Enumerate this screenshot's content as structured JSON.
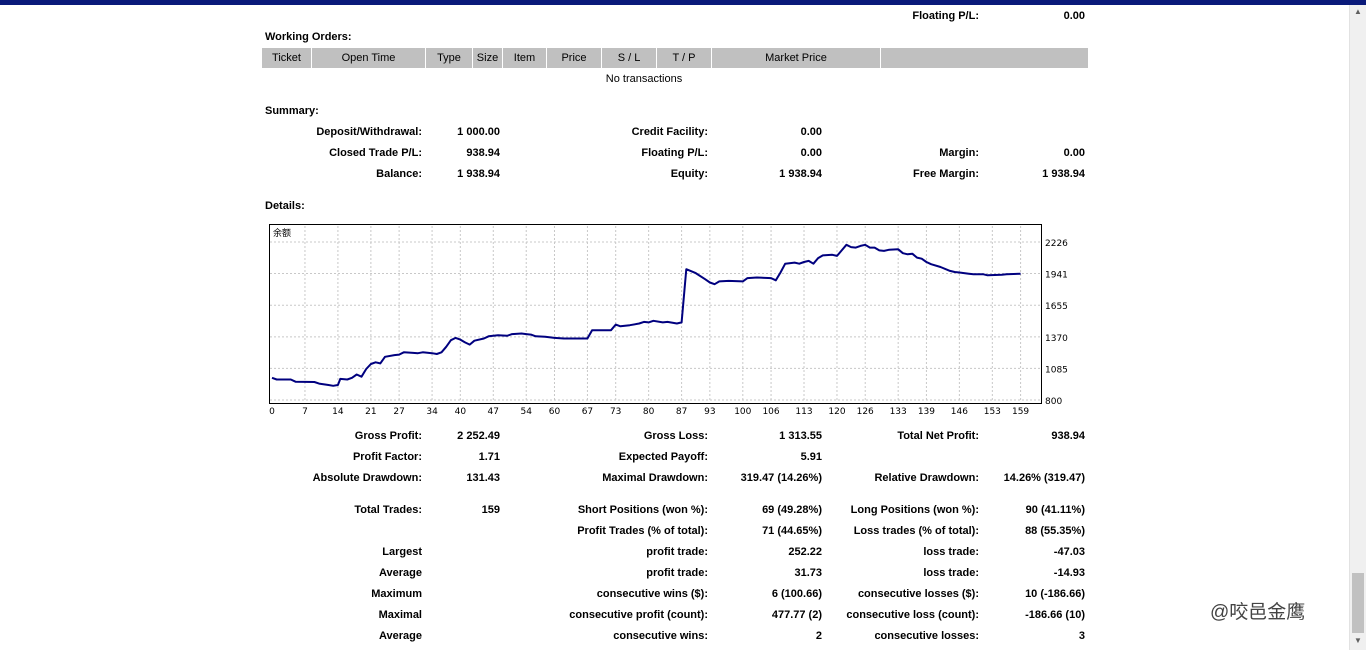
{
  "top": {
    "floating_label": "Floating P/L:",
    "floating_value": "0.00"
  },
  "working_orders": {
    "title": "Working Orders:",
    "columns": [
      "Ticket",
      "Open Time",
      "Type",
      "Size",
      "Item",
      "Price",
      "S / L",
      "T / P",
      "Market Price",
      ""
    ],
    "empty_text": "No transactions"
  },
  "summary": {
    "title": "Summary:",
    "deposit_label": "Deposit/Withdrawal:",
    "deposit_value": "1 000.00",
    "credit_label": "Credit Facility:",
    "credit_value": "0.00",
    "closed_label": "Closed Trade P/L:",
    "closed_value": "938.94",
    "floating_label": "Floating P/L:",
    "floating_value": "0.00",
    "margin_label": "Margin:",
    "margin_value": "0.00",
    "balance_label": "Balance:",
    "balance_value": "1 938.94",
    "equity_label": "Equity:",
    "equity_value": "1 938.94",
    "free_margin_label": "Free Margin:",
    "free_margin_value": "1 938.94"
  },
  "details": {
    "title": "Details:"
  },
  "chart_data": {
    "type": "line",
    "title": "余额",
    "x_ticks": [
      0,
      7,
      14,
      21,
      27,
      34,
      40,
      47,
      54,
      60,
      67,
      73,
      80,
      87,
      93,
      100,
      106,
      113,
      120,
      126,
      133,
      139,
      146,
      153,
      159
    ],
    "y_ticks": [
      800,
      1085,
      1370,
      1655,
      1941,
      2226
    ],
    "xlim": [
      0,
      161
    ],
    "ylim": [
      800,
      2370
    ],
    "grid": true,
    "line_color": "#00007f",
    "series": [
      {
        "points": [
          [
            0,
            1000
          ],
          [
            1,
            985
          ],
          [
            4,
            985
          ],
          [
            5,
            965
          ],
          [
            9,
            962
          ],
          [
            10,
            948
          ],
          [
            12,
            935
          ],
          [
            13,
            928
          ],
          [
            14,
            935
          ],
          [
            14.5,
            990
          ],
          [
            16,
            985
          ],
          [
            17,
            1000
          ],
          [
            18,
            1030
          ],
          [
            19,
            1010
          ],
          [
            20,
            1080
          ],
          [
            21,
            1125
          ],
          [
            22,
            1140
          ],
          [
            23,
            1130
          ],
          [
            24,
            1190
          ],
          [
            26,
            1205
          ],
          [
            27,
            1210
          ],
          [
            28,
            1230
          ],
          [
            30,
            1225
          ],
          [
            31,
            1222
          ],
          [
            32,
            1230
          ],
          [
            34,
            1222
          ],
          [
            35,
            1215
          ],
          [
            36,
            1230
          ],
          [
            37,
            1280
          ],
          [
            38,
            1340
          ],
          [
            39,
            1360
          ],
          [
            40,
            1345
          ],
          [
            41,
            1320
          ],
          [
            42,
            1300
          ],
          [
            43,
            1335
          ],
          [
            45,
            1355
          ],
          [
            46,
            1375
          ],
          [
            48,
            1385
          ],
          [
            50,
            1380
          ],
          [
            51,
            1395
          ],
          [
            53,
            1400
          ],
          [
            54,
            1395
          ],
          [
            55,
            1390
          ],
          [
            56,
            1375
          ],
          [
            58,
            1370
          ],
          [
            60,
            1360
          ],
          [
            62,
            1355
          ],
          [
            67,
            1355
          ],
          [
            68,
            1430
          ],
          [
            70,
            1430
          ],
          [
            72,
            1430
          ],
          [
            73,
            1480
          ],
          [
            74,
            1465
          ],
          [
            75,
            1470
          ],
          [
            76,
            1475
          ],
          [
            78,
            1490
          ],
          [
            79,
            1505
          ],
          [
            80,
            1500
          ],
          [
            81,
            1515
          ],
          [
            83,
            1500
          ],
          [
            84,
            1505
          ],
          [
            86,
            1490
          ],
          [
            87,
            1500
          ],
          [
            88,
            1980
          ],
          [
            90,
            1945
          ],
          [
            92,
            1890
          ],
          [
            93,
            1860
          ],
          [
            94,
            1845
          ],
          [
            95,
            1870
          ],
          [
            97,
            1875
          ],
          [
            100,
            1870
          ],
          [
            101,
            1900
          ],
          [
            103,
            1905
          ],
          [
            106,
            1900
          ],
          [
            107,
            1880
          ],
          [
            108,
            1950
          ],
          [
            109,
            2030
          ],
          [
            111,
            2040
          ],
          [
            112,
            2030
          ],
          [
            113,
            2045
          ],
          [
            114,
            2055
          ],
          [
            115,
            2030
          ],
          [
            116,
            2080
          ],
          [
            117,
            2105
          ],
          [
            119,
            2110
          ],
          [
            120,
            2100
          ],
          [
            121,
            2150
          ],
          [
            122,
            2200
          ],
          [
            123,
            2180
          ],
          [
            124,
            2175
          ],
          [
            125,
            2190
          ],
          [
            126,
            2200
          ],
          [
            127,
            2175
          ],
          [
            128,
            2175
          ],
          [
            129,
            2150
          ],
          [
            130,
            2145
          ],
          [
            131,
            2155
          ],
          [
            133,
            2160
          ],
          [
            134,
            2125
          ],
          [
            135,
            2115
          ],
          [
            136,
            2120
          ],
          [
            137,
            2085
          ],
          [
            138,
            2075
          ],
          [
            139,
            2045
          ],
          [
            140,
            2025
          ],
          [
            142,
            2000
          ],
          [
            144,
            1965
          ],
          [
            145,
            1955
          ],
          [
            146,
            1950
          ],
          [
            147,
            1945
          ],
          [
            148,
            1940
          ],
          [
            149,
            1935
          ],
          [
            151,
            1935
          ],
          [
            152,
            1925
          ],
          [
            155,
            1930
          ],
          [
            156,
            1935
          ],
          [
            159,
            1939
          ]
        ]
      }
    ]
  },
  "stats": {
    "gross_profit_label": "Gross Profit:",
    "gross_profit_value": "2 252.49",
    "gross_loss_label": "Gross Loss:",
    "gross_loss_value": "1 313.55",
    "total_net_label": "Total Net Profit:",
    "total_net_value": "938.94",
    "profit_factor_label": "Profit Factor:",
    "profit_factor_value": "1.71",
    "expected_payoff_label": "Expected Payoff:",
    "expected_payoff_value": "5.91",
    "abs_dd_label": "Absolute Drawdown:",
    "abs_dd_value": "131.43",
    "max_dd_label": "Maximal Drawdown:",
    "max_dd_value": "319.47 (14.26%)",
    "rel_dd_label": "Relative Drawdown:",
    "rel_dd_value": "14.26% (319.47)",
    "total_trades_label": "Total Trades:",
    "total_trades_value": "159",
    "short_label": "Short Positions (won %):",
    "short_value": "69 (49.28%)",
    "long_label": "Long Positions (won %):",
    "long_value": "90 (41.11%)",
    "profit_trades_label": "Profit Trades (% of total):",
    "profit_trades_value": "71 (44.65%)",
    "loss_trades_label": "Loss trades (% of total):",
    "loss_trades_value": "88 (55.35%)",
    "largest_label": "Largest",
    "largest_profit_label": "profit trade:",
    "largest_profit_value": "252.22",
    "largest_loss_label": "loss trade:",
    "largest_loss_value": "-47.03",
    "average_label": "Average",
    "average_profit_label": "profit trade:",
    "average_profit_value": "31.73",
    "average_loss_label": "loss trade:",
    "average_loss_value": "-14.93",
    "maximum_label": "Maximum",
    "max_wins_label": "consecutive wins ($):",
    "max_wins_value": "6 (100.66)",
    "max_losses_label": "consecutive losses ($):",
    "max_losses_value": "10 (-186.66)",
    "maximal_label": "Maximal",
    "maximal_profit_label": "consecutive profit (count):",
    "maximal_profit_value": "477.77 (2)",
    "maximal_loss_label": "consecutive loss (count):",
    "maximal_loss_value": "-186.66 (10)",
    "avg2_label": "Average",
    "avg_wins_label": "consecutive wins:",
    "avg_wins_value": "2",
    "avg_losses_label": "consecutive losses:",
    "avg_losses_value": "3"
  },
  "watermark": {
    "text": "@咬邑金鹰"
  }
}
